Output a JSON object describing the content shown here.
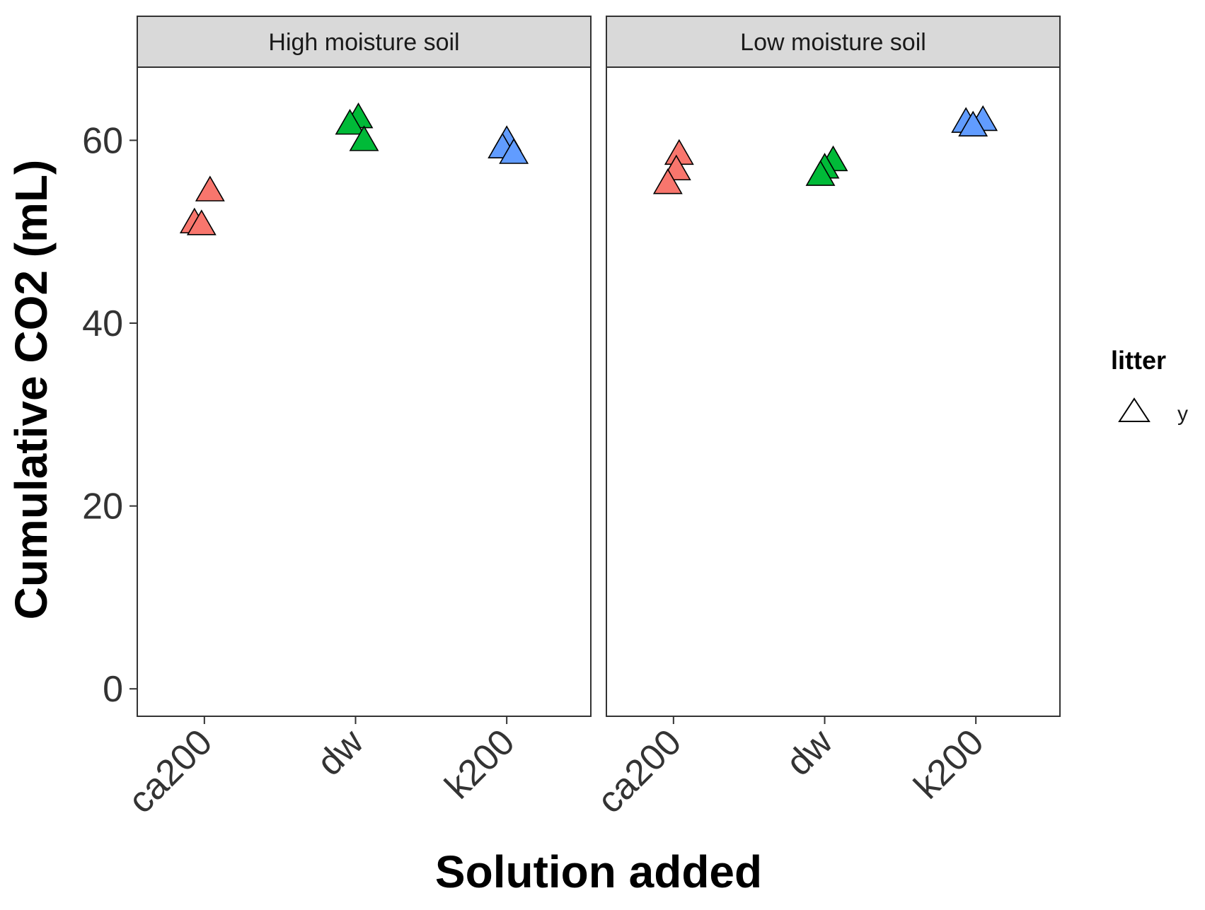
{
  "chart_data": {
    "type": "scatter",
    "xlabel": "Solution added",
    "ylabel": "Cumulative CO2 (mL)",
    "ylim": [
      -3,
      68
    ],
    "yticks": [
      0,
      20,
      40,
      60
    ],
    "categories": [
      "ca200",
      "dw",
      "k200"
    ],
    "grid": false,
    "legend": {
      "title": "litter",
      "placement": "right",
      "entries": [
        {
          "label": "y",
          "shape": "triangle-open"
        }
      ]
    },
    "category_colors": {
      "ca200": "#F8766D",
      "dw": "#00BA38",
      "k200": "#619CFF"
    },
    "panels": [
      {
        "title": "High moisture soil",
        "points": [
          {
            "x": "ca200",
            "y": 51.0
          },
          {
            "x": "ca200",
            "y": 50.8
          },
          {
            "x": "ca200",
            "y": 54.5
          },
          {
            "x": "dw",
            "y": 62.5
          },
          {
            "x": "dw",
            "y": 61.8
          },
          {
            "x": "dw",
            "y": 60.0
          },
          {
            "x": "k200",
            "y": 60.0
          },
          {
            "x": "k200",
            "y": 59.2
          },
          {
            "x": "k200",
            "y": 58.6
          }
        ]
      },
      {
        "title": "Low moisture soil",
        "points": [
          {
            "x": "ca200",
            "y": 58.5
          },
          {
            "x": "ca200",
            "y": 56.8
          },
          {
            "x": "ca200",
            "y": 55.3
          },
          {
            "x": "dw",
            "y": 57.8
          },
          {
            "x": "dw",
            "y": 57.0
          },
          {
            "x": "dw",
            "y": 56.2
          },
          {
            "x": "k200",
            "y": 62.2
          },
          {
            "x": "k200",
            "y": 62.0
          },
          {
            "x": "k200",
            "y": 61.6
          }
        ]
      }
    ]
  }
}
